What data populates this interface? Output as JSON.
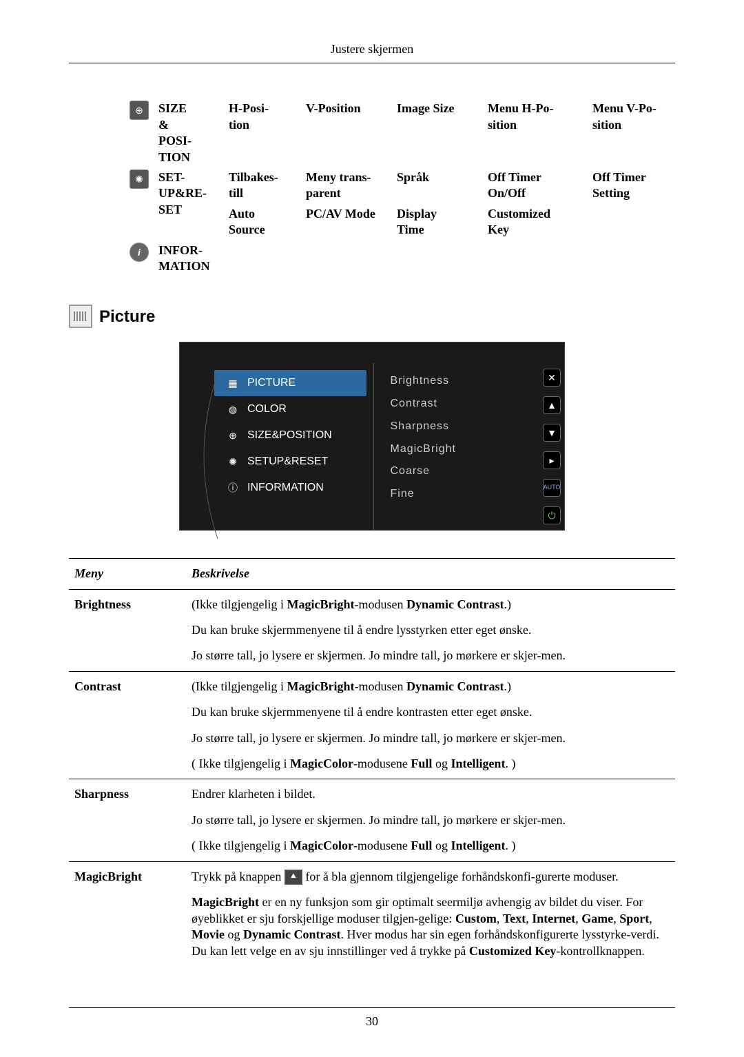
{
  "header": {
    "title": "Justere skjermen"
  },
  "topRows": [
    {
      "icon": "⊕",
      "col1": "SIZE & POSI-TION",
      "cells": [
        {
          "label": "H-Posi-tion"
        },
        {
          "label": "V-Position"
        },
        {
          "label": "Image Size"
        },
        {
          "label": "Menu H-Po-sition"
        },
        {
          "label": "Menu V-Po-sition"
        }
      ]
    },
    {
      "icon": "✺",
      "col1": "SET-UP&RE-SET",
      "rows": [
        [
          {
            "text": "Tilbakes-till"
          },
          {
            "text": "Meny trans-parent"
          },
          {
            "text": "Språk"
          },
          {
            "text": "Off Timer On/Off"
          },
          {
            "text": "Off Timer Setting"
          }
        ],
        [
          {
            "text": "Auto Source"
          },
          {
            "text": "PC/AV Mode"
          },
          {
            "text": "Display Time"
          },
          {
            "text": "Customized Key"
          },
          {
            "text": ""
          }
        ]
      ]
    },
    {
      "icon": "i",
      "col1": "INFOR-MATION"
    }
  ],
  "sectionTitle": "Picture",
  "osd": {
    "left": [
      {
        "key": "PICTURE",
        "active": true,
        "icon": "▦"
      },
      {
        "key": "COLOR",
        "icon": "◍"
      },
      {
        "key": "SIZE&POSITION",
        "icon": "⊕"
      },
      {
        "key": "SETUP&RESET",
        "icon": "✺"
      },
      {
        "key": "INFORMATION",
        "icon": "ⓘ"
      }
    ],
    "right": [
      "Brightness",
      "Contrast",
      "Sharpness",
      "MagicBright",
      "Coarse",
      "Fine"
    ],
    "buttons": [
      "✕",
      "▲",
      "▼",
      "▸",
      "AUTO",
      "⏻"
    ]
  },
  "tableHeaders": {
    "meny": "Meny",
    "besk": "Beskrivelse"
  },
  "rows": [
    {
      "meny": "Brightness",
      "paragraphs": [
        "(Ikke tilgjengelig i <b>MagicBright</b>-modusen <b>Dynamic Contrast</b>.)",
        "Du kan bruke skjermmenyene til å endre lysstyrken etter eget ønske.",
        "Jo større tall, jo lysere er skjermen. Jo mindre tall, jo mørkere er skjer-men."
      ]
    },
    {
      "meny": "Contrast",
      "paragraphs": [
        "(Ikke tilgjengelig i <b>MagicBright</b>-modusen <b>Dynamic Contrast</b>.)",
        "Du kan bruke skjermmenyene til å endre kontrasten etter eget ønske.",
        "Jo større tall, jo lysere er skjermen. Jo mindre tall, jo mørkere er skjer-men.",
        "( Ikke tilgjengelig i <b>MagicColor</b>-modusene <b>Full</b> og <b>Intelligent</b>. )"
      ]
    },
    {
      "meny": "Sharpness",
      "paragraphs": [
        "Endrer klarheten i bildet.",
        "Jo større tall, jo lysere er skjermen. Jo mindre tall, jo mørkere er skjer-men.",
        "( Ikke tilgjengelig i <b>MagicColor</b>-modusene <b>Full</b> og <b>Intelligent</b>. )"
      ]
    },
    {
      "meny": "MagicBright",
      "paragraphs": [
        "Trykk på knappen {ICON} for å bla gjennom tilgjengelige forhåndskonfi-gurerte moduser.",
        "<b>MagicBright</b> er en ny funksjon som gir optimalt seermiljø avhengig av bildet du viser. For øyeblikket er sju forskjellige moduser tilgjen-gelige: <b>Custom</b>, <b>Text</b>, <b>Internet</b>, <b>Game</b>, <b>Sport</b>, <b>Movie</b> og <b>Dynamic Contrast</b>. Hver modus har sin egen forhåndskonfigurerte lysstyrke-verdi. Du kan lett velge en av sju innstillinger ved å trykke på <b>Customized Key</b>-kontrollknappen."
      ]
    }
  ],
  "pageNumber": "30"
}
